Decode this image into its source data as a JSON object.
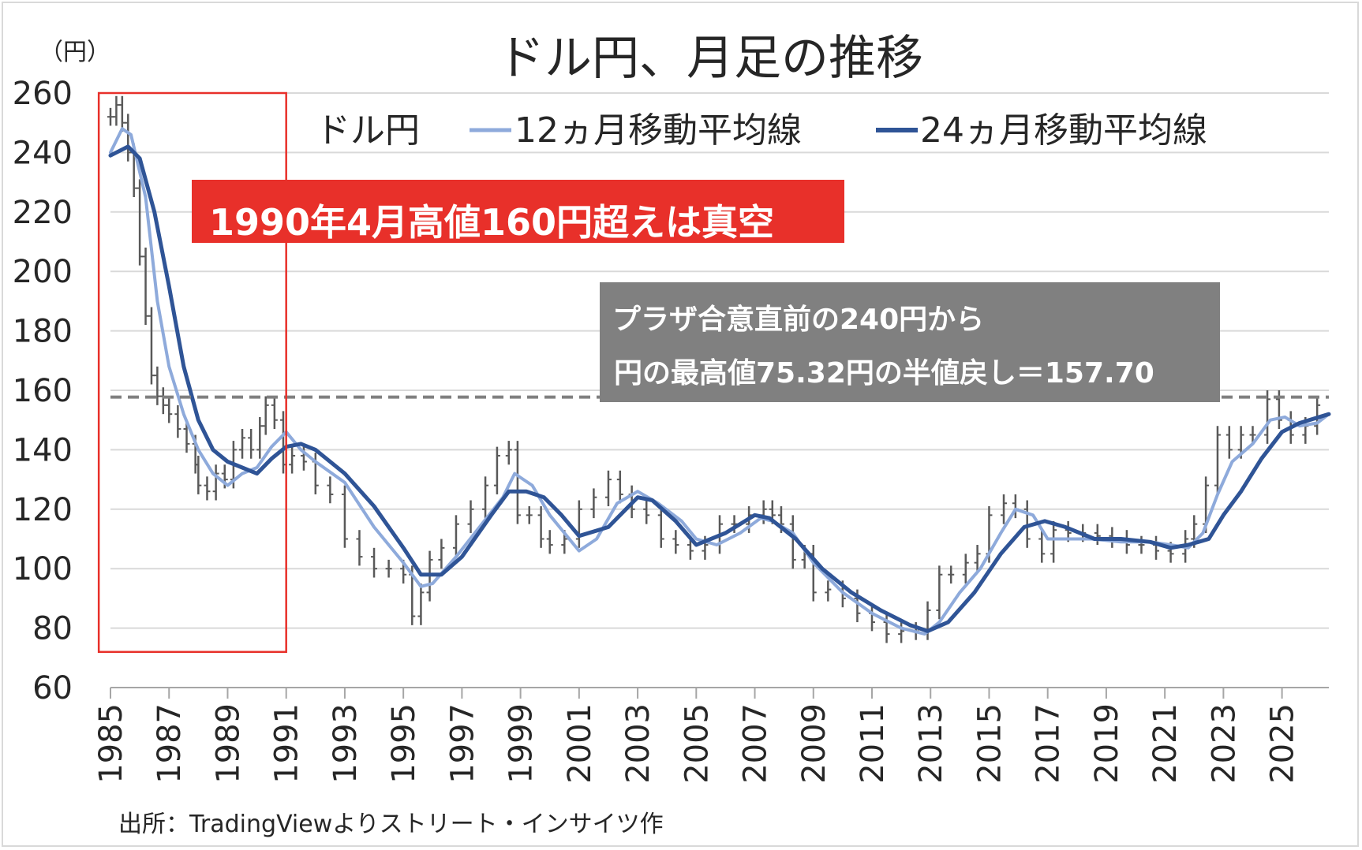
{
  "chart_data": {
    "type": "line",
    "title": "ドル円、月足の推移",
    "ylabel": "（円）",
    "ylim": [
      60,
      260
    ],
    "yticks": [
      "60",
      "80",
      "100",
      "120",
      "140",
      "160",
      "180",
      "200",
      "220",
      "240",
      "260"
    ],
    "xlim": [
      1985.0,
      2026.6
    ],
    "xticks": [
      "1985",
      "1987",
      "1989",
      "1991",
      "1993",
      "1995",
      "1997",
      "1999",
      "2001",
      "2003",
      "2005",
      "2007",
      "2009",
      "2011",
      "2013",
      "2015",
      "2017",
      "2019",
      "2021",
      "2023",
      "2025"
    ],
    "grid": true,
    "legend_position": "top",
    "series": [
      {
        "name": "ドル円",
        "style": "ohlc-bars",
        "color": "#595959",
        "x": [
          1985.0,
          1985.2,
          1985.4,
          1985.6,
          1985.8,
          1986.0,
          1986.2,
          1986.4,
          1986.6,
          1986.8,
          1987.0,
          1987.3,
          1987.6,
          1987.9,
          1988.0,
          1988.3,
          1988.6,
          1988.9,
          1989.2,
          1989.5,
          1989.8,
          1990.1,
          1990.3,
          1990.6,
          1990.9,
          1991.2,
          1991.6,
          1992.0,
          1992.5,
          1993.0,
          1993.5,
          1994.0,
          1994.5,
          1995.0,
          1995.3,
          1995.6,
          1995.9,
          1996.3,
          1996.8,
          1997.3,
          1997.8,
          1998.2,
          1998.6,
          1998.9,
          1999.3,
          1999.7,
          2000.0,
          2000.5,
          2001.0,
          2001.5,
          2002.0,
          2002.4,
          2002.8,
          2003.3,
          2003.8,
          2004.3,
          2004.8,
          2005.3,
          2005.8,
          2006.3,
          2006.8,
          2007.3,
          2007.6,
          2007.9,
          2008.3,
          2008.7,
          2009.0,
          2009.5,
          2010.0,
          2010.5,
          2011.0,
          2011.5,
          2012.0,
          2012.5,
          2012.9,
          2013.3,
          2013.7,
          2014.2,
          2014.6,
          2015.0,
          2015.5,
          2015.9,
          2016.3,
          2016.8,
          2017.2,
          2017.7,
          2018.2,
          2018.7,
          2019.2,
          2019.7,
          2020.2,
          2020.7,
          2021.2,
          2021.7,
          2022.0,
          2022.4,
          2022.8,
          2023.2,
          2023.6,
          2024.0,
          2024.5,
          2024.9,
          2025.3,
          2025.8,
          2026.2
        ],
        "values": [
          252,
          256,
          250,
          240,
          228,
          205,
          185,
          165,
          158,
          155,
          152,
          147,
          142,
          135,
          128,
          126,
          132,
          130,
          140,
          144,
          140,
          148,
          155,
          150,
          135,
          138,
          136,
          128,
          125,
          110,
          104,
          100,
          100,
          98,
          84,
          92,
          103,
          107,
          115,
          120,
          128,
          138,
          140,
          118,
          118,
          110,
          108,
          110,
          120,
          124,
          130,
          125,
          120,
          118,
          110,
          108,
          106,
          108,
          115,
          115,
          118,
          120,
          118,
          115,
          103,
          105,
          92,
          93,
          90,
          85,
          82,
          78,
          79,
          79,
          86,
          98,
          98,
          102,
          105,
          118,
          122,
          120,
          110,
          105,
          113,
          112,
          112,
          111,
          110,
          108,
          108,
          106,
          105,
          110,
          115,
          128,
          145,
          140,
          145,
          145,
          157,
          150,
          145,
          148,
          155
        ]
      },
      {
        "name": "12ヵ月移動平均線",
        "style": "line",
        "color": "#8eaadb",
        "x": [
          1985.0,
          1985.4,
          1985.7,
          1986.2,
          1986.6,
          1987.0,
          1987.5,
          1988.0,
          1988.5,
          1989.0,
          1989.5,
          1990.0,
          1990.5,
          1991.0,
          1991.5,
          1992.0,
          1993.0,
          1994.0,
          1995.0,
          1995.6,
          1996.0,
          1996.8,
          1997.6,
          1998.4,
          1998.8,
          1999.4,
          2000.0,
          2000.5,
          2001.0,
          2001.6,
          2002.3,
          2003.0,
          2003.7,
          2004.5,
          2005.0,
          2005.7,
          2006.5,
          2007.2,
          2007.6,
          2008.3,
          2009.0,
          2010.0,
          2011.0,
          2012.0,
          2012.8,
          2013.3,
          2014.0,
          2014.7,
          2015.4,
          2015.9,
          2016.5,
          2017.0,
          2017.6,
          2018.5,
          2019.5,
          2020.5,
          2021.2,
          2021.8,
          2022.3,
          2022.8,
          2023.3,
          2024.0,
          2024.6,
          2025.1,
          2025.6,
          2026.2,
          2026.6
        ],
        "values": [
          240,
          248,
          246,
          225,
          190,
          168,
          152,
          140,
          132,
          128,
          132,
          134,
          141,
          146,
          140,
          136,
          129,
          114,
          102,
          94,
          95,
          104,
          114,
          124,
          132,
          128,
          118,
          112,
          106,
          110,
          122,
          126,
          122,
          116,
          110,
          108,
          112,
          117,
          116,
          112,
          102,
          92,
          85,
          80,
          78,
          82,
          92,
          100,
          112,
          120,
          118,
          110,
          110,
          110,
          109,
          109,
          108,
          107,
          112,
          125,
          136,
          142,
          150,
          151,
          148,
          149,
          152
        ]
      },
      {
        "name": "24ヵ月移動平均線",
        "style": "line",
        "color": "#2f5496",
        "x": [
          1985.0,
          1985.6,
          1986.0,
          1986.5,
          1987.0,
          1987.5,
          1988.0,
          1988.5,
          1989.0,
          1989.5,
          1990.0,
          1990.5,
          1991.0,
          1991.5,
          1992.0,
          1993.0,
          1994.0,
          1995.0,
          1995.6,
          1996.3,
          1997.0,
          1998.0,
          1998.6,
          1999.2,
          1999.8,
          2000.4,
          2001.0,
          2002.0,
          2003.0,
          2003.5,
          2004.3,
          2005.0,
          2006.0,
          2007.0,
          2007.5,
          2008.4,
          2009.3,
          2010.3,
          2011.3,
          2012.3,
          2012.9,
          2013.6,
          2014.5,
          2015.4,
          2016.2,
          2016.9,
          2017.6,
          2018.6,
          2019.5,
          2020.5,
          2021.2,
          2021.8,
          2022.5,
          2023.0,
          2023.6,
          2024.3,
          2025.0,
          2025.6,
          2026.6
        ],
        "values": [
          239,
          242,
          238,
          220,
          195,
          168,
          150,
          140,
          136,
          134,
          132,
          137,
          141,
          142,
          140,
          132,
          121,
          107,
          98,
          98,
          104,
          118,
          126,
          126,
          124,
          118,
          111,
          114,
          124,
          123,
          116,
          108,
          112,
          118,
          117,
          110,
          100,
          92,
          86,
          81,
          79,
          82,
          92,
          105,
          114,
          116,
          114,
          110,
          110,
          109,
          107,
          108,
          110,
          118,
          126,
          137,
          146,
          149,
          152
        ]
      }
    ],
    "reference_line": {
      "y": 157.7,
      "style": "dashed",
      "color": "#808080"
    },
    "annotations": [
      {
        "text": "1990年4月高値160円超えは真空",
        "background": "#e8302a",
        "color": "#ffffff"
      },
      {
        "lines": [
          "プラザ合意直前の240円から",
          "円の最高値75.32円の半値戻し＝157.70"
        ],
        "background": "#808080",
        "color": "#ffffff"
      }
    ],
    "highlight_box": {
      "x_range": [
        1984.6,
        1991.0
      ],
      "y_range": [
        72,
        260
      ],
      "color": "#e8302a"
    }
  },
  "source": "出所：TradingViewよりストリート・インサイツ作"
}
